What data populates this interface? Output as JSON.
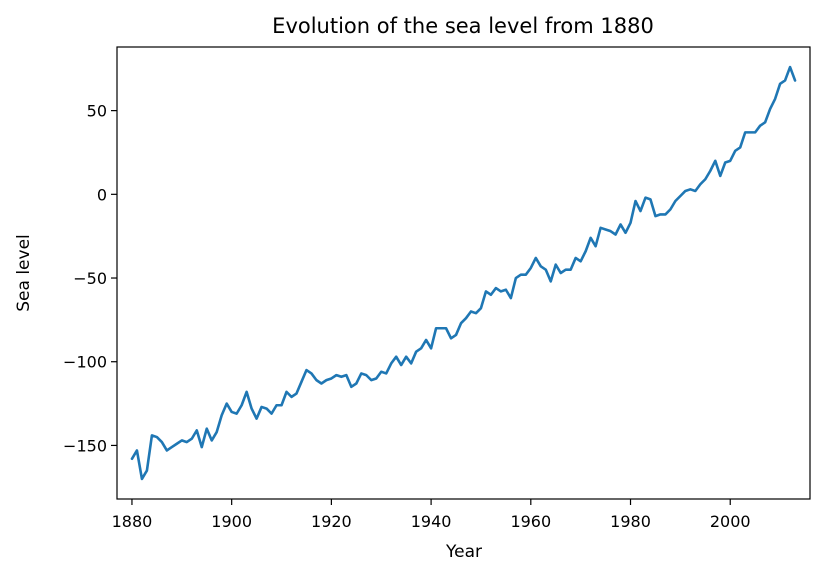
{
  "chart_data": {
    "type": "line",
    "title": "Evolution of the sea level from 1880",
    "xlabel": "Year",
    "ylabel": "Sea level",
    "xlim": [
      1877,
      2016
    ],
    "ylim": [
      -182,
      88
    ],
    "xticks": [
      1880,
      1900,
      1920,
      1940,
      1960,
      1980,
      2000
    ],
    "yticks": [
      -150,
      -100,
      -50,
      0,
      50
    ],
    "ytick_labels": [
      "−150",
      "−100",
      "−50",
      "0",
      "50"
    ],
    "grid": false,
    "line_color": "#1f77b4",
    "series": [
      {
        "x": [
          1880,
          1881,
          1882,
          1883,
          1884,
          1885,
          1886,
          1887,
          1888,
          1889,
          1890,
          1891,
          1892,
          1893,
          1894,
          1895,
          1896,
          1897,
          1898,
          1899,
          1900,
          1901,
          1902,
          1903,
          1904,
          1905,
          1906,
          1907,
          1908,
          1909,
          1910,
          1911,
          1912,
          1913,
          1914,
          1915,
          1916,
          1917,
          1918,
          1919,
          1920,
          1921,
          1922,
          1923,
          1924,
          1925,
          1926,
          1927,
          1928,
          1929,
          1930,
          1931,
          1932,
          1933,
          1934,
          1935,
          1936,
          1937,
          1938,
          1939,
          1940,
          1941,
          1942,
          1943,
          1944,
          1945,
          1946,
          1947,
          1948,
          1949,
          1950,
          1951,
          1952,
          1953,
          1954,
          1955,
          1956,
          1957,
          1958,
          1959,
          1960,
          1961,
          1962,
          1963,
          1964,
          1965,
          1966,
          1967,
          1968,
          1969,
          1970,
          1971,
          1972,
          1973,
          1974,
          1975,
          1976,
          1977,
          1978,
          1979,
          1980,
          1981,
          1982,
          1983,
          1984,
          1985,
          1986,
          1987,
          1988,
          1989,
          1990,
          1991,
          1992,
          1993,
          1994,
          1995,
          1996,
          1997,
          1998,
          1999,
          2000,
          2001,
          2002,
          2003,
          2004,
          2005,
          2006,
          2007,
          2008,
          2009,
          2010,
          2011,
          2012,
          2013
        ],
        "values": [
          -158,
          -153,
          -170,
          -165,
          -144,
          -145,
          -148,
          -153,
          -151,
          -149,
          -147,
          -148,
          -146,
          -141,
          -151,
          -140,
          -147,
          -142,
          -132,
          -125,
          -130,
          -131,
          -126,
          -118,
          -128,
          -134,
          -127,
          -128,
          -131,
          -126,
          -126,
          -118,
          -121,
          -119,
          -112,
          -105,
          -107,
          -111,
          -113,
          -111,
          -110,
          -108,
          -109,
          -108,
          -115,
          -113,
          -107,
          -108,
          -111,
          -110,
          -106,
          -107,
          -101,
          -97,
          -102,
          -97,
          -101,
          -94,
          -92,
          -87,
          -92,
          -80,
          -80,
          -80,
          -86,
          -84,
          -77,
          -74,
          -70,
          -71,
          -68,
          -58,
          -60,
          -56,
          -58,
          -57,
          -62,
          -50,
          -48,
          -48,
          -44,
          -38,
          -43,
          -45,
          -52,
          -42,
          -47,
          -45,
          -45,
          -38,
          -40,
          -34,
          -26,
          -31,
          -20,
          -21,
          -22,
          -24,
          -18,
          -23,
          -17,
          -4,
          -10,
          -2,
          -3,
          -13,
          -12,
          -12,
          -9,
          -4,
          -1,
          2,
          3,
          2,
          6,
          9,
          14,
          20,
          11,
          19,
          20,
          26,
          28,
          37,
          37,
          37,
          41,
          43,
          51,
          57,
          66,
          68,
          76,
          68
        ]
      }
    ]
  }
}
